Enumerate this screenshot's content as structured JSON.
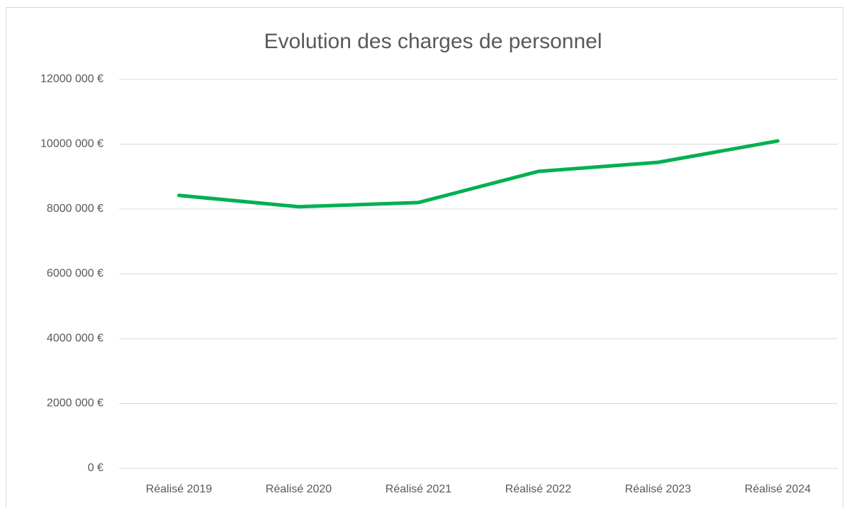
{
  "chart_data": {
    "type": "line",
    "title": "Evolution des charges de personnel",
    "categories": [
      "Réalisé 2019",
      "Réalisé 2020",
      "Réalisé 2021",
      "Réalisé 2022",
      "Réalisé 2023",
      "Réalisé 2024"
    ],
    "values": [
      8420000,
      8070000,
      8200000,
      9160000,
      9440000,
      10100000
    ],
    "color": "#00b050",
    "ylim": [
      0,
      12000000
    ],
    "yticks": [
      {
        "value": 0,
        "label": "0 €"
      },
      {
        "value": 2000000,
        "label": "2000 000 €"
      },
      {
        "value": 4000000,
        "label": "4000 000 €"
      },
      {
        "value": 6000000,
        "label": "6000 000 €"
      },
      {
        "value": 8000000,
        "label": "8000 000 €"
      },
      {
        "value": 10000000,
        "label": "10000 000 €"
      },
      {
        "value": 12000000,
        "label": "12000 000 €"
      }
    ],
    "grid": true
  }
}
